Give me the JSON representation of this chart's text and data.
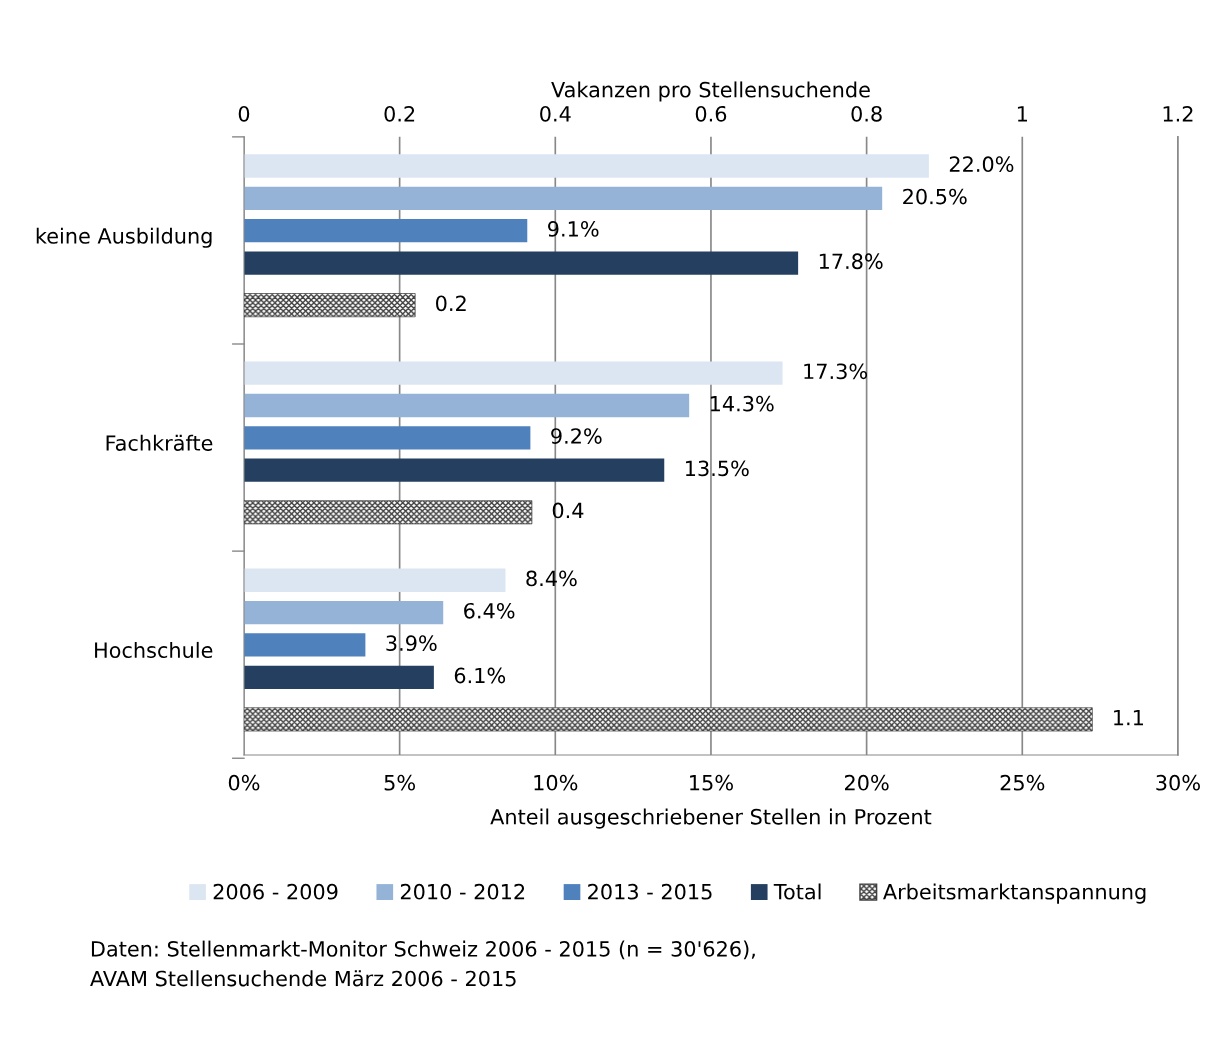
{
  "chart_data": {
    "type": "bar",
    "orientation": "horizontal",
    "categories": [
      "keine Ausbildung",
      "Fachkräfte",
      "Hochschule"
    ],
    "series": [
      {
        "name": "2006 - 2009",
        "color": "#dce6f2",
        "values": [
          22.0,
          17.3,
          8.4
        ],
        "value_labels": [
          "22.0%",
          "17.3%",
          "8.4%"
        ]
      },
      {
        "name": "2010 - 2012",
        "color": "#95b3d7",
        "values": [
          20.5,
          14.3,
          6.4
        ],
        "value_labels": [
          "20.5%",
          "14.3%",
          "6.4%"
        ]
      },
      {
        "name": "2013 - 2015",
        "color": "#4f81bd",
        "values": [
          9.1,
          9.2,
          3.9
        ],
        "value_labels": [
          "9.1%",
          "9.2%",
          "3.9%"
        ]
      },
      {
        "name": "Total",
        "color": "#243f60",
        "values": [
          17.8,
          13.5,
          6.1
        ],
        "value_labels": [
          "17.8%",
          "13.5%",
          "6.1%"
        ]
      },
      {
        "name": "Arbeitsmarktanspannung",
        "color": "#404040",
        "axis": "x2",
        "values": [
          0.22,
          0.37,
          1.09
        ],
        "value_labels": [
          "0.2",
          "0.4",
          "1.1"
        ]
      }
    ],
    "xlim": [
      0,
      30
    ],
    "xticks": [
      {
        "value": 0,
        "label": "0%"
      },
      {
        "value": 5,
        "label": "5%"
      },
      {
        "value": 10,
        "label": "10%"
      },
      {
        "value": 15,
        "label": "15%"
      },
      {
        "value": 20,
        "label": "20%"
      },
      {
        "value": 25,
        "label": "25%"
      },
      {
        "value": 30,
        "label": "30%"
      }
    ],
    "xlabel": "Anteil ausgeschriebener Stellen in Prozent",
    "x2lim": [
      0,
      1.2
    ],
    "x2ticks": [
      0,
      0.2,
      0.4,
      0.6,
      0.8,
      1,
      1.2
    ],
    "x2label": "Vakanzen pro Stellensuchende",
    "grid": "x",
    "legend": "bottom",
    "annotations": [
      "Daten: Stellenmarkt-Monitor Schweiz 2006 - 2015 (n = 30'626),\nAVAM Stellensuchende März 2006 - 2015"
    ]
  }
}
